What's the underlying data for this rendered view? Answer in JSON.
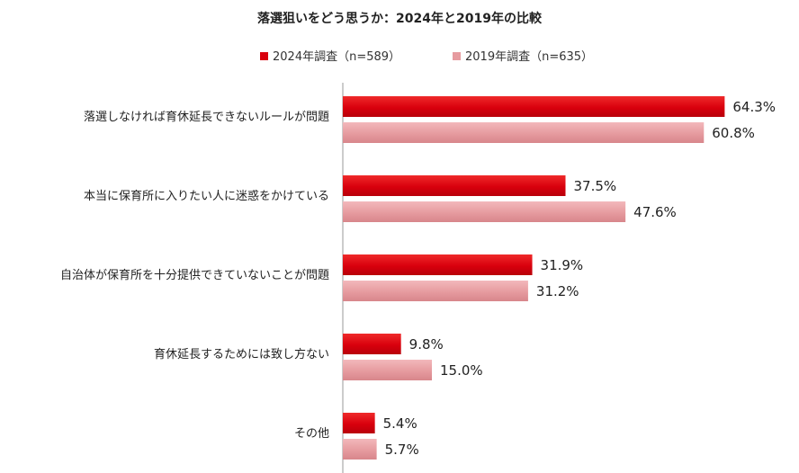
{
  "chart_data": {
    "type": "bar",
    "orientation": "horizontal",
    "title": "落選狙いをどう思うか：2024年と2019年の比較",
    "categories": [
      "落選しなければ育休延長できないルールが問題",
      "本当に保育所に入りたい人に迷惑をかけている",
      "自治体が保育所を十分提供できていないことが問題",
      "育休延長するためには致し方ない",
      "その他"
    ],
    "series": [
      {
        "name": "2024年調査（n=589）",
        "color": "#d9000d",
        "values": [
          64.3,
          37.5,
          31.9,
          9.8,
          5.4
        ],
        "labels": [
          "64.3%",
          "37.5%",
          "31.9%",
          "9.8%",
          "5.4%"
        ]
      },
      {
        "name": "2019年調査（n=635）",
        "color": "#e69b9f",
        "values": [
          60.8,
          47.6,
          31.2,
          15.0,
          5.7
        ],
        "labels": [
          "60.8%",
          "47.6%",
          "31.2%",
          "15.0%",
          "5.7%"
        ]
      }
    ],
    "xlim": [
      0,
      70
    ],
    "legend_position": "top",
    "grid": false
  }
}
